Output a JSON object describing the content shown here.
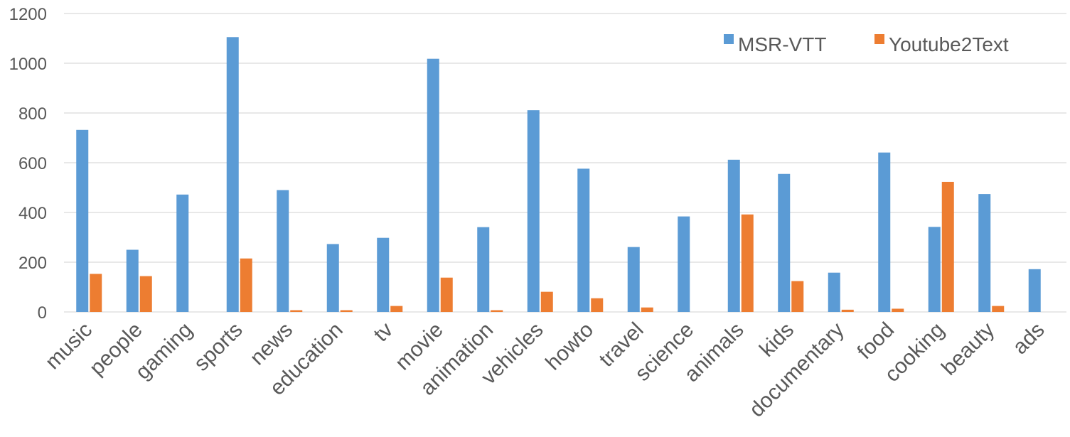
{
  "chart_data": {
    "type": "bar",
    "categories": [
      "music",
      "people",
      "gaming",
      "sports",
      "news",
      "education",
      "tv",
      "movie",
      "animation",
      "vehicles",
      "howto",
      "travel",
      "science",
      "animals",
      "kids",
      "documentary",
      "food",
      "cooking",
      "beauty",
      "ads"
    ],
    "series": [
      {
        "name": "MSR-VTT",
        "color": "#5B9BD5",
        "values": [
          732,
          250,
          472,
          1105,
          490,
          273,
          298,
          1018,
          341,
          811,
          576,
          261,
          384,
          612,
          555,
          158,
          641,
          342,
          474,
          172
        ]
      },
      {
        "name": "Youtube2Text",
        "color": "#ED7D31",
        "values": [
          153,
          144,
          0,
          215,
          7,
          7,
          24,
          138,
          7,
          81,
          55,
          18,
          0,
          392,
          124,
          9,
          13,
          523,
          24,
          0
        ]
      }
    ],
    "ylim": [
      0,
      1200
    ],
    "yticks": [
      0,
      200,
      400,
      600,
      800,
      1000,
      1200
    ],
    "grid": true,
    "legend_position": "top-right"
  }
}
